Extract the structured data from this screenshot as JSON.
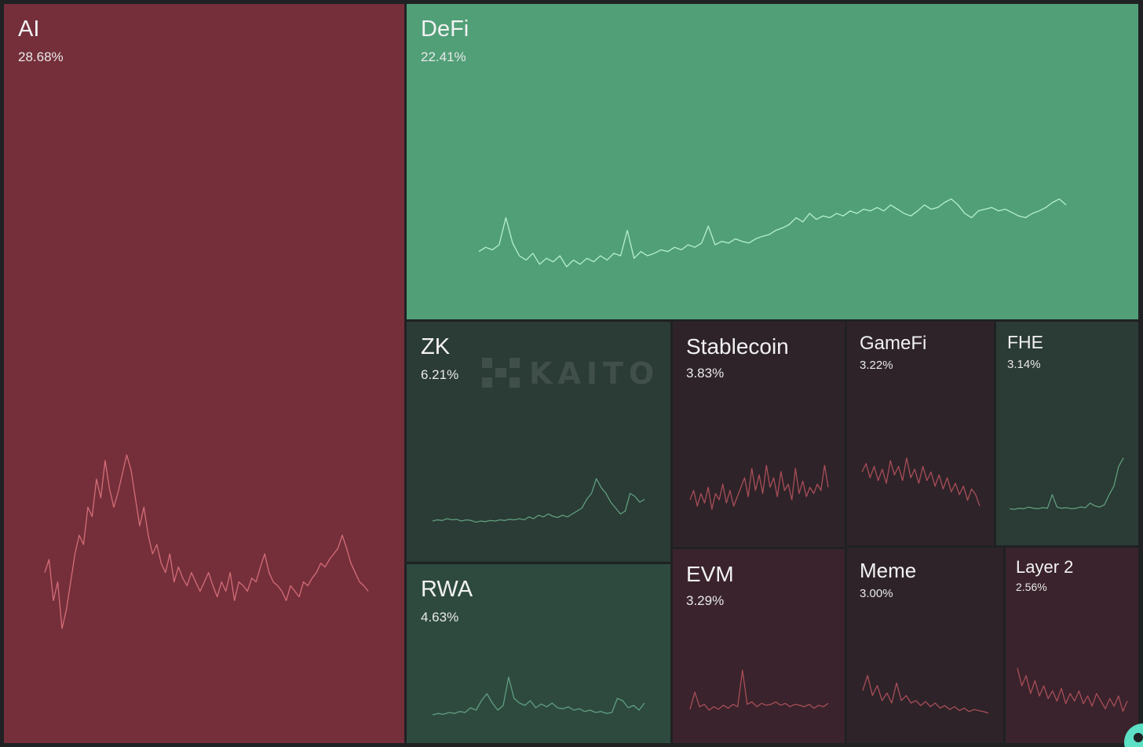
{
  "chart_data": {
    "type": "treemap",
    "colors": {
      "background": "#1f2123",
      "strong_down": "#742f3a",
      "strong_up": "#519f77",
      "line_down": "#d9707c",
      "line_up": "#b5f0cf"
    },
    "tiles": [
      {
        "id": "ai",
        "label": "AI",
        "value": "28.68%",
        "trend": "down",
        "fill": "#742f3a",
        "line": "#d46d78",
        "series": [
          0.35,
          0.42,
          0.2,
          0.3,
          0.05,
          0.15,
          0.3,
          0.45,
          0.55,
          0.5,
          0.7,
          0.65,
          0.85,
          0.75,
          0.95,
          0.8,
          0.7,
          0.78,
          0.88,
          0.98,
          0.9,
          0.75,
          0.6,
          0.7,
          0.55,
          0.45,
          0.5,
          0.4,
          0.35,
          0.45,
          0.3,
          0.38,
          0.32,
          0.28,
          0.35,
          0.3,
          0.25,
          0.3,
          0.35,
          0.28,
          0.22,
          0.3,
          0.25,
          0.35,
          0.2,
          0.3,
          0.28,
          0.25,
          0.32,
          0.3,
          0.38,
          0.45,
          0.35,
          0.3,
          0.28,
          0.25,
          0.2,
          0.28,
          0.25,
          0.22,
          0.3,
          0.28,
          0.32,
          0.35,
          0.4,
          0.38,
          0.42,
          0.45,
          0.48,
          0.55,
          0.48,
          0.4,
          0.35,
          0.3,
          0.28,
          0.25
        ]
      },
      {
        "id": "defi",
        "label": "DeFi",
        "value": "22.41%",
        "trend": "up",
        "fill": "#519f77",
        "line": "#b5f0cf",
        "series": [
          0.3,
          0.35,
          0.32,
          0.38,
          0.7,
          0.4,
          0.25,
          0.2,
          0.28,
          0.15,
          0.22,
          0.18,
          0.25,
          0.12,
          0.2,
          0.15,
          0.22,
          0.18,
          0.25,
          0.2,
          0.28,
          0.25,
          0.55,
          0.22,
          0.3,
          0.25,
          0.28,
          0.32,
          0.3,
          0.35,
          0.32,
          0.38,
          0.35,
          0.4,
          0.6,
          0.38,
          0.42,
          0.4,
          0.45,
          0.42,
          0.4,
          0.45,
          0.48,
          0.5,
          0.55,
          0.58,
          0.62,
          0.7,
          0.65,
          0.75,
          0.68,
          0.72,
          0.7,
          0.75,
          0.72,
          0.78,
          0.75,
          0.8,
          0.78,
          0.82,
          0.78,
          0.85,
          0.8,
          0.75,
          0.72,
          0.78,
          0.85,
          0.8,
          0.82,
          0.88,
          0.92,
          0.85,
          0.75,
          0.7,
          0.78,
          0.8,
          0.82,
          0.78,
          0.8,
          0.76,
          0.72,
          0.7,
          0.75,
          0.78,
          0.82,
          0.88,
          0.92,
          0.85
        ]
      },
      {
        "id": "zk",
        "label": "ZK",
        "value": "6.21%",
        "trend": "up",
        "fill": "#2b3b35",
        "line": "#5f9e7f",
        "series": [
          0.08,
          0.1,
          0.09,
          0.12,
          0.1,
          0.11,
          0.08,
          0.1,
          0.09,
          0.06,
          0.08,
          0.07,
          0.09,
          0.08,
          0.1,
          0.09,
          0.11,
          0.1,
          0.12,
          0.1,
          0.15,
          0.12,
          0.18,
          0.15,
          0.2,
          0.16,
          0.14,
          0.18,
          0.15,
          0.2,
          0.25,
          0.3,
          0.45,
          0.55,
          0.8,
          0.65,
          0.55,
          0.4,
          0.3,
          0.2,
          0.25,
          0.55,
          0.5,
          0.4,
          0.45
        ]
      },
      {
        "id": "rwa",
        "label": "RWA",
        "value": "4.63%",
        "trend": "up",
        "fill": "#2e4a3f",
        "line": "#5f9e7f",
        "series": [
          0.05,
          0.08,
          0.06,
          0.1,
          0.08,
          0.12,
          0.1,
          0.2,
          0.15,
          0.35,
          0.5,
          0.3,
          0.15,
          0.25,
          0.85,
          0.4,
          0.3,
          0.25,
          0.35,
          0.2,
          0.28,
          0.22,
          0.3,
          0.2,
          0.18,
          0.22,
          0.15,
          0.18,
          0.12,
          0.15,
          0.1,
          0.12,
          0.08,
          0.1,
          0.4,
          0.35,
          0.2,
          0.25,
          0.15,
          0.3
        ]
      },
      {
        "id": "stablecoin",
        "label": "Stablecoin",
        "value": "3.83%",
        "trend": "down",
        "fill": "#2e2329",
        "line": "#a84e58",
        "series": [
          0.35,
          0.5,
          0.25,
          0.45,
          0.3,
          0.55,
          0.2,
          0.45,
          0.35,
          0.6,
          0.3,
          0.5,
          0.25,
          0.4,
          0.55,
          0.7,
          0.4,
          0.85,
          0.5,
          0.75,
          0.45,
          0.9,
          0.55,
          0.7,
          0.4,
          0.8,
          0.5,
          0.6,
          0.35,
          0.85,
          0.45,
          0.65,
          0.4,
          0.55,
          0.45,
          0.6,
          0.5,
          0.9,
          0.55
        ]
      },
      {
        "id": "gamefi",
        "label": "GameFi",
        "value": "3.22%",
        "trend": "down",
        "fill": "#2e2329",
        "line": "#a84e58",
        "series": [
          0.7,
          0.85,
          0.6,
          0.8,
          0.55,
          0.75,
          0.5,
          0.9,
          0.65,
          0.8,
          0.55,
          0.95,
          0.6,
          0.75,
          0.5,
          0.8,
          0.55,
          0.7,
          0.45,
          0.65,
          0.4,
          0.6,
          0.35,
          0.5,
          0.3,
          0.45,
          0.2,
          0.4,
          0.3,
          0.1
        ]
      },
      {
        "id": "fhe",
        "label": "FHE",
        "value": "3.14%",
        "trend": "up",
        "fill": "#2b3b35",
        "line": "#5f9e7f",
        "series": [
          0.05,
          0.04,
          0.06,
          0.05,
          0.08,
          0.06,
          0.05,
          0.07,
          0.06,
          0.3,
          0.08,
          0.06,
          0.07,
          0.05,
          0.06,
          0.08,
          0.07,
          0.15,
          0.1,
          0.08,
          0.12,
          0.3,
          0.45,
          0.8,
          0.95
        ]
      },
      {
        "id": "evm",
        "label": "EVM",
        "value": "3.29%",
        "trend": "down",
        "fill": "#3a232c",
        "line": "#a84e58",
        "series": [
          0.1,
          0.45,
          0.15,
          0.2,
          0.08,
          0.15,
          0.1,
          0.18,
          0.12,
          0.2,
          0.15,
          0.9,
          0.2,
          0.25,
          0.15,
          0.22,
          0.18,
          0.2,
          0.25,
          0.18,
          0.22,
          0.15,
          0.2,
          0.18,
          0.15,
          0.2,
          0.12,
          0.18,
          0.15,
          0.22
        ]
      },
      {
        "id": "meme",
        "label": "Meme",
        "value": "3.00%",
        "trend": "down",
        "fill": "#2e2329",
        "line": "#a84e58",
        "series": [
          0.5,
          0.8,
          0.4,
          0.6,
          0.3,
          0.45,
          0.25,
          0.65,
          0.3,
          0.4,
          0.25,
          0.3,
          0.2,
          0.28,
          0.18,
          0.25,
          0.15,
          0.2,
          0.12,
          0.18,
          0.1,
          0.15,
          0.08,
          0.12,
          0.1,
          0.08,
          0.05
        ]
      },
      {
        "id": "layer2",
        "label": "Layer 2",
        "value": "2.56%",
        "trend": "down",
        "fill": "#3a232c",
        "line": "#a84e58",
        "series": [
          0.95,
          0.6,
          0.8,
          0.45,
          0.7,
          0.4,
          0.6,
          0.35,
          0.5,
          0.3,
          0.55,
          0.25,
          0.45,
          0.3,
          0.5,
          0.25,
          0.4,
          0.2,
          0.45,
          0.3,
          0.15,
          0.35,
          0.2,
          0.4,
          0.1,
          0.3
        ]
      }
    ]
  },
  "watermark": {
    "text": "KAITO"
  }
}
